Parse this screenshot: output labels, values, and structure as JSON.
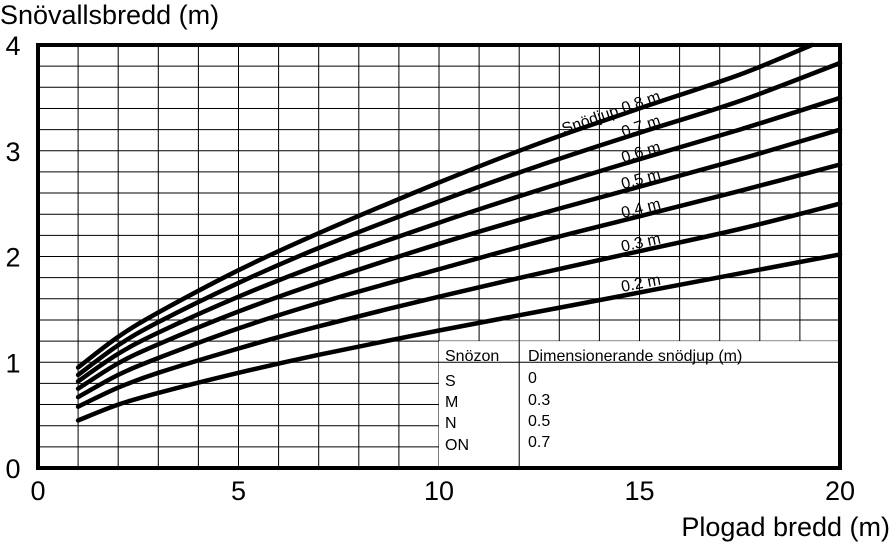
{
  "chart_data": {
    "type": "line",
    "title": "",
    "ylabel": "Snövallsbredd (m)",
    "xlabel": "Plogad bredd (m)",
    "xlim": [
      0,
      20
    ],
    "ylim": [
      0,
      4
    ],
    "xticks": [
      "0",
      "5",
      "10",
      "15",
      "20"
    ],
    "yticks": [
      "0",
      "1",
      "2",
      "3",
      "4"
    ],
    "grid": true,
    "line_color": "#000000",
    "series": [
      {
        "name": "Snödjup 0.8 m",
        "x": [
          1,
          2,
          3,
          5,
          7,
          10,
          12.5,
          15,
          17.5,
          19.3
        ],
        "y": [
          0.95,
          1.24,
          1.47,
          1.87,
          2.22,
          2.7,
          3.07,
          3.4,
          3.72,
          4.0
        ]
      },
      {
        "name": "0.7 m",
        "x": [
          1,
          2,
          3,
          5,
          7,
          10,
          12.5,
          15,
          17.5,
          20
        ],
        "y": [
          0.88,
          1.16,
          1.38,
          1.75,
          2.08,
          2.52,
          2.86,
          3.17,
          3.47,
          3.83
        ]
      },
      {
        "name": "0.6 m",
        "x": [
          1,
          2,
          3,
          5,
          7,
          10,
          12.5,
          15,
          17.5,
          20
        ],
        "y": [
          0.82,
          1.08,
          1.28,
          1.62,
          1.92,
          2.32,
          2.63,
          2.92,
          3.2,
          3.5
        ]
      },
      {
        "name": "0.5 m",
        "x": [
          1,
          2,
          3,
          5,
          7,
          10,
          12.5,
          15,
          17.5,
          20
        ],
        "y": [
          0.75,
          0.99,
          1.17,
          1.48,
          1.75,
          2.12,
          2.4,
          2.66,
          2.92,
          3.2
        ]
      },
      {
        "name": "0.4 m",
        "x": [
          1,
          2,
          3,
          5,
          7,
          10,
          12.5,
          15,
          17.5,
          20
        ],
        "y": [
          0.67,
          0.88,
          1.04,
          1.32,
          1.56,
          1.88,
          2.14,
          2.38,
          2.62,
          2.87
        ]
      },
      {
        "name": "0.3 m",
        "x": [
          1,
          2,
          3,
          5,
          7,
          10,
          12.5,
          15,
          17.5,
          20
        ],
        "y": [
          0.58,
          0.76,
          0.9,
          1.13,
          1.34,
          1.62,
          1.84,
          2.05,
          2.26,
          2.5
        ]
      },
      {
        "name": "0.2 m",
        "x": [
          1,
          2,
          3,
          5,
          7,
          10,
          12.5,
          15,
          17.5,
          20
        ],
        "y": [
          0.45,
          0.6,
          0.71,
          0.9,
          1.07,
          1.3,
          1.48,
          1.66,
          1.84,
          2.02
        ]
      }
    ],
    "table": {
      "headers": [
        "Snözon",
        "Dimensionerande snödjup (m)"
      ],
      "rows": [
        [
          "S",
          "0"
        ],
        [
          "M",
          "0.3"
        ],
        [
          "N",
          "0.5"
        ],
        [
          "ON",
          "0.7"
        ]
      ]
    }
  }
}
